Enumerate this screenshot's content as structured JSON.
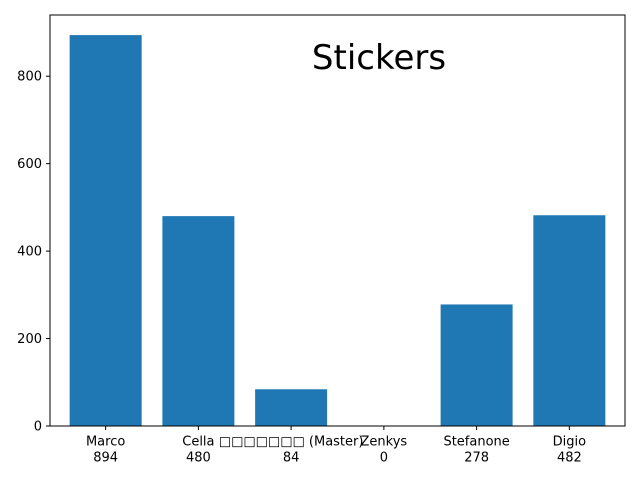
{
  "chart_data": {
    "type": "bar",
    "title": "Stickers",
    "categories": [
      "Marco\n894",
      "Cella\n480",
      "□□□□□□□ (Master)\n84",
      "Zenkys\n0",
      "Stefanone\n278",
      "Digio\n482"
    ],
    "values": [
      894,
      480,
      84,
      0,
      278,
      482
    ],
    "ylim": [
      0,
      940
    ],
    "yticks": [
      0,
      200,
      400,
      600,
      800
    ],
    "xlabel": "",
    "ylabel": "",
    "grid": false,
    "bar_color": "#1f77b4"
  }
}
